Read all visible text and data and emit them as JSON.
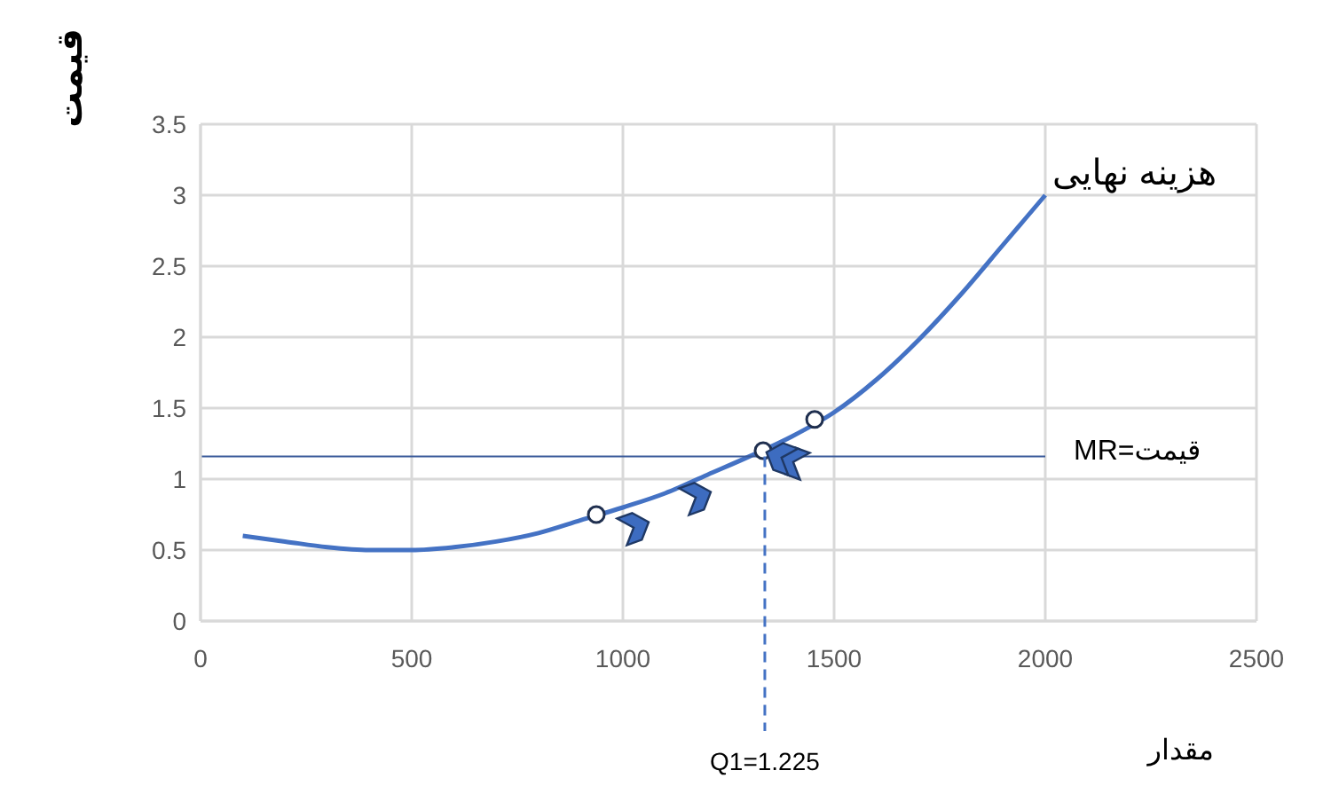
{
  "chart_data": {
    "type": "line",
    "xlabel": "مقدار",
    "ylabel": "قیمت",
    "xlim": [
      0,
      2500
    ],
    "xticks": [
      0,
      500,
      1000,
      1500,
      2000,
      2500
    ],
    "ylim": [
      0,
      3.5
    ],
    "yticks": [
      0,
      0.5,
      1,
      1.5,
      2,
      2.5,
      3,
      3.5
    ],
    "grid": true,
    "series": [
      {
        "type": "line",
        "name": "هزینه نهایی",
        "color": "#4472c4",
        "marker": "none",
        "x": [
          100,
          200,
          300,
          400,
          500,
          600,
          700,
          800,
          900,
          1000,
          1100,
          1200,
          1300,
          1400,
          1500,
          1600,
          1700,
          1800,
          1900,
          2000
        ],
        "values": [
          0.6,
          0.56,
          0.52,
          0.5,
          0.5,
          0.52,
          0.56,
          0.62,
          0.71,
          0.8,
          0.9,
          1.03,
          1.16,
          1.3,
          1.47,
          1.7,
          1.98,
          2.3,
          2.65,
          3.0
        ]
      },
      {
        "type": "line",
        "name": "قیمت=MR",
        "color": "#3a5a9a",
        "marker": "none",
        "x": [
          0,
          2000
        ],
        "values": [
          1.16,
          1.16
        ]
      },
      {
        "type": "scatter",
        "color": "#ffffff",
        "marker": "circle",
        "x": [
          937,
          1332,
          1454
        ],
        "values": [
          0.75,
          1.2,
          1.42
        ]
      }
    ],
    "ref_lines": [
      {
        "axis": "x",
        "value": 1336,
        "color": "#4472c4",
        "line_style": "dashed"
      }
    ],
    "annotations": [
      "Q1=1.225"
    ]
  }
}
